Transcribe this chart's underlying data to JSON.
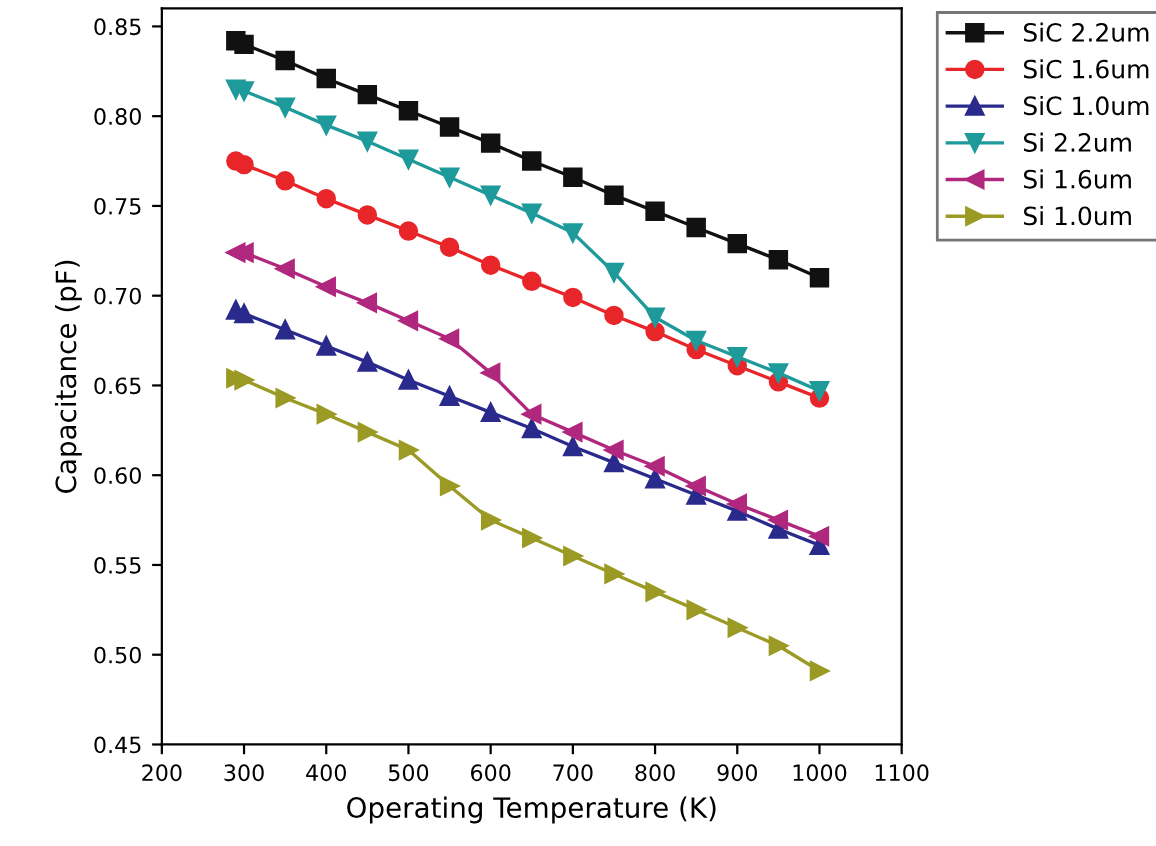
{
  "chart_data": {
    "type": "line",
    "xlabel": "Operating Temperature (K)",
    "ylabel": "Capacitance (pF)",
    "x": [
      290,
      300,
      350,
      400,
      450,
      500,
      550,
      600,
      650,
      700,
      750,
      800,
      850,
      900,
      950,
      1000
    ],
    "xlim": [
      200,
      1100
    ],
    "xticks": [
      200,
      300,
      400,
      500,
      600,
      700,
      800,
      900,
      1000,
      1100
    ],
    "ylim": [
      0.45,
      0.86
    ],
    "yticks": [
      {
        "value": 0.45,
        "label": "0.45"
      },
      {
        "value": 0.5,
        "label": "0.50"
      },
      {
        "value": 0.55,
        "label": "0.55"
      },
      {
        "value": 0.6,
        "label": "0.60"
      },
      {
        "value": 0.65,
        "label": "0.65"
      },
      {
        "value": 0.7,
        "label": "0.70"
      },
      {
        "value": 0.75,
        "label": "0.75"
      },
      {
        "value": 0.8,
        "label": "0.80"
      },
      {
        "value": 0.85,
        "label": "0.85"
      }
    ],
    "legend": "top right",
    "grid": false,
    "series": [
      {
        "name": "SiC 2.2um",
        "color": "#111111",
        "marker": "square",
        "values": [
          0.842,
          0.84,
          0.831,
          0.821,
          0.812,
          0.803,
          0.794,
          0.785,
          0.775,
          0.766,
          0.756,
          0.747,
          0.738,
          0.729,
          0.72,
          0.71
        ]
      },
      {
        "name": "SiC 1.6um",
        "color": "#e8262a",
        "marker": "circle",
        "values": [
          0.775,
          0.773,
          0.764,
          0.754,
          0.745,
          0.736,
          0.727,
          0.717,
          0.708,
          0.699,
          0.689,
          0.68,
          0.67,
          0.661,
          0.652,
          0.643
        ]
      },
      {
        "name": "SiC 1.0um",
        "color": "#2a2a8c",
        "marker": "triangle",
        "values": [
          0.692,
          0.69,
          0.681,
          0.672,
          0.663,
          0.653,
          0.644,
          0.635,
          0.626,
          0.616,
          0.607,
          0.598,
          0.589,
          0.58,
          0.57,
          0.561
        ]
      },
      {
        "name": "Si 2.2um",
        "color": "#1f9a9a",
        "marker": "triangle_down",
        "values": [
          0.815,
          0.814,
          0.805,
          0.795,
          0.786,
          0.776,
          0.766,
          0.756,
          0.746,
          0.735,
          0.713,
          0.688,
          0.675,
          0.666,
          0.657,
          0.647
        ]
      },
      {
        "name": "Si 1.6um",
        "color": "#b0287e",
        "marker": "triangle_left",
        "values": [
          0.724,
          0.724,
          0.715,
          0.705,
          0.696,
          0.686,
          0.676,
          0.657,
          0.634,
          0.624,
          0.614,
          0.605,
          0.594,
          0.584,
          0.575,
          0.566
        ]
      },
      {
        "name": "Si 1.0um",
        "color": "#9a9a24",
        "marker": "triangle_right",
        "values": [
          0.654,
          0.653,
          0.643,
          0.634,
          0.624,
          0.614,
          0.594,
          0.575,
          0.565,
          0.555,
          0.545,
          0.535,
          0.525,
          0.515,
          0.505,
          0.491
        ]
      }
    ]
  }
}
